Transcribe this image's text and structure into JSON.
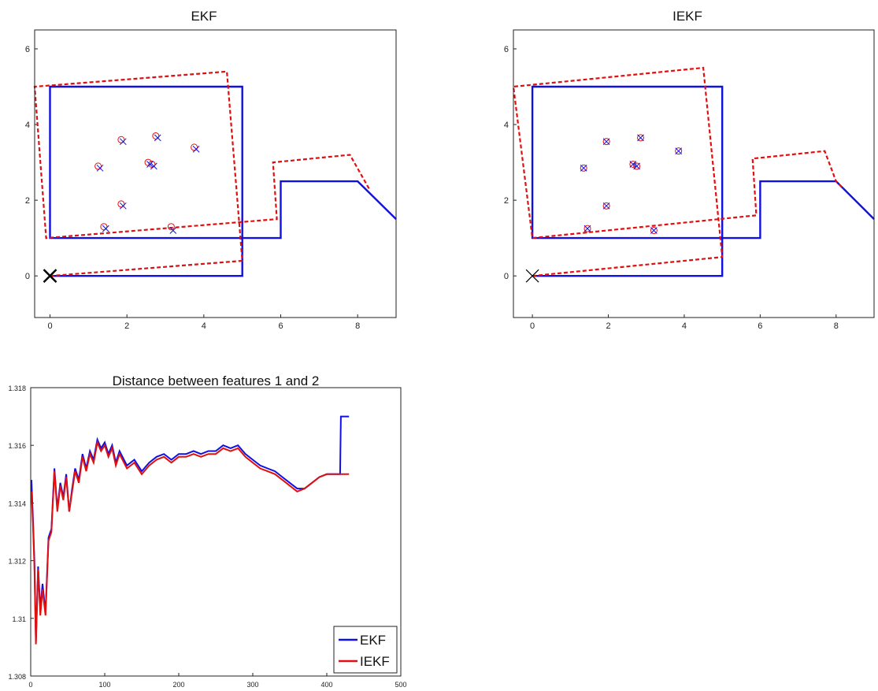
{
  "chart_data": [
    {
      "type": "line",
      "title": "EKF",
      "xlim": [
        -0.4,
        9
      ],
      "ylim": [
        -1.1,
        6.5
      ],
      "xticks": [
        "0",
        "2",
        "4",
        "6",
        "8"
      ],
      "yticks": [
        "0",
        "2",
        "4",
        "6"
      ],
      "grid": false,
      "series": [
        {
          "role": "true-trajectory",
          "color": "#1010e0",
          "style": "solid",
          "points": [
            [
              0,
              0
            ],
            [
              5,
              0
            ],
            [
              5,
              5
            ],
            [
              0,
              5
            ],
            [
              0,
              1
            ],
            [
              6,
              1
            ],
            [
              6,
              2.5
            ],
            [
              8,
              2.5
            ],
            [
              9,
              1.5
            ]
          ]
        },
        {
          "role": "estimated-trajectory",
          "color": "#e01010",
          "style": "dashed",
          "points": [
            [
              0,
              0
            ],
            [
              5,
              0.4
            ],
            [
              4.6,
              5.4
            ],
            [
              -0.4,
              5.0
            ],
            [
              -0.1,
              1.0
            ],
            [
              5.9,
              1.5
            ],
            [
              5.8,
              3.0
            ],
            [
              7.8,
              3.2
            ],
            [
              8.3,
              2.3
            ]
          ]
        }
      ],
      "features_true": [
        [
          1.3,
          2.85
        ],
        [
          1.9,
          3.55
        ],
        [
          2.8,
          3.65
        ],
        [
          3.8,
          3.35
        ],
        [
          2.6,
          2.95
        ],
        [
          2.7,
          2.9
        ],
        [
          1.9,
          1.85
        ],
        [
          1.45,
          1.25
        ],
        [
          3.2,
          1.2
        ]
      ],
      "features_estimated": [
        [
          1.25,
          2.9
        ],
        [
          1.85,
          3.6
        ],
        [
          2.75,
          3.7
        ],
        [
          3.75,
          3.4
        ],
        [
          2.55,
          3.0
        ],
        [
          2.65,
          2.95
        ],
        [
          1.85,
          1.9
        ],
        [
          1.4,
          1.3
        ],
        [
          3.15,
          1.3
        ]
      ],
      "start_marker": [
        0,
        0
      ]
    },
    {
      "type": "line",
      "title": "IEKF",
      "xlim": [
        -0.5,
        9
      ],
      "ylim": [
        -1.1,
        6.5
      ],
      "xticks": [
        "0",
        "2",
        "4",
        "6",
        "8"
      ],
      "yticks": [
        "0",
        "2",
        "4",
        "6"
      ],
      "grid": false,
      "series": [
        {
          "role": "true-trajectory",
          "color": "#1010e0",
          "style": "solid",
          "points": [
            [
              0,
              0
            ],
            [
              5,
              0
            ],
            [
              5,
              5
            ],
            [
              0,
              5
            ],
            [
              0,
              1
            ],
            [
              6,
              1
            ],
            [
              6,
              2.5
            ],
            [
              8,
              2.5
            ],
            [
              9,
              1.5
            ]
          ]
        },
        {
          "role": "estimated-trajectory",
          "color": "#e01010",
          "style": "dashed",
          "points": [
            [
              0,
              0
            ],
            [
              5,
              0.5
            ],
            [
              4.5,
              5.5
            ],
            [
              -0.5,
              5.0
            ],
            [
              0,
              1.0
            ],
            [
              5.9,
              1.6
            ],
            [
              5.8,
              3.1
            ],
            [
              7.7,
              3.3
            ],
            [
              8,
              2.5
            ],
            [
              8.2,
              2.3
            ]
          ]
        }
      ],
      "features_true": [
        [
          1.35,
          2.85
        ],
        [
          1.95,
          3.55
        ],
        [
          2.85,
          3.65
        ],
        [
          3.85,
          3.3
        ],
        [
          2.65,
          2.95
        ],
        [
          2.75,
          2.9
        ],
        [
          1.95,
          1.85
        ],
        [
          1.45,
          1.25
        ],
        [
          3.2,
          1.2
        ]
      ],
      "features_estimated": [
        [
          1.35,
          2.85
        ],
        [
          1.95,
          3.55
        ],
        [
          2.85,
          3.65
        ],
        [
          3.85,
          3.3
        ],
        [
          2.65,
          2.95
        ],
        [
          2.75,
          2.9
        ],
        [
          1.95,
          1.85
        ],
        [
          1.45,
          1.25
        ],
        [
          3.2,
          1.2
        ]
      ],
      "start_marker": [
        0,
        0
      ]
    },
    {
      "type": "line",
      "title": "Distance between features 1 and 2",
      "xlim": [
        0,
        500
      ],
      "ylim": [
        1.308,
        1.318
      ],
      "xticks": [
        "0",
        "100",
        "200",
        "300",
        "400",
        "500"
      ],
      "yticks": [
        "1.308",
        "1.31",
        "1.312",
        "1.314",
        "1.316",
        "1.318"
      ],
      "grid": false,
      "legend_position": "bottom-right",
      "series": [
        {
          "name": "EKF",
          "color": "#1010e0",
          "x": [
            1,
            3,
            5,
            7,
            10,
            13,
            16,
            20,
            24,
            28,
            32,
            36,
            40,
            44,
            48,
            52,
            56,
            60,
            65,
            70,
            75,
            80,
            85,
            90,
            95,
            100,
            105,
            110,
            115,
            120,
            130,
            140,
            150,
            160,
            170,
            180,
            190,
            200,
            210,
            220,
            230,
            240,
            250,
            260,
            270,
            280,
            290,
            300,
            310,
            320,
            330,
            340,
            350,
            360,
            370,
            380,
            390,
            400,
            410,
            418,
            419,
            420,
            430
          ],
          "values": [
            1.3148,
            1.3135,
            1.312,
            1.3092,
            1.3118,
            1.3103,
            1.3112,
            1.3102,
            1.3128,
            1.3131,
            1.3152,
            1.3138,
            1.3147,
            1.3142,
            1.315,
            1.3137,
            1.3145,
            1.3152,
            1.3148,
            1.3157,
            1.3152,
            1.3158,
            1.3155,
            1.3162,
            1.3159,
            1.3161,
            1.3157,
            1.316,
            1.3154,
            1.3158,
            1.3153,
            1.3155,
            1.3151,
            1.3154,
            1.3156,
            1.3157,
            1.3155,
            1.3157,
            1.3157,
            1.3158,
            1.3157,
            1.3158,
            1.3158,
            1.316,
            1.3159,
            1.316,
            1.3157,
            1.3155,
            1.3153,
            1.3152,
            1.3151,
            1.3149,
            1.3147,
            1.3145,
            1.3145,
            1.3147,
            1.3149,
            1.315,
            1.315,
            1.315,
            1.317,
            1.317,
            1.317
          ]
        },
        {
          "name": "IEKF",
          "color": "#e01010",
          "x": [
            1,
            3,
            5,
            7,
            10,
            13,
            16,
            20,
            24,
            28,
            32,
            36,
            40,
            44,
            48,
            52,
            56,
            60,
            65,
            70,
            75,
            80,
            85,
            90,
            95,
            100,
            105,
            110,
            115,
            120,
            130,
            140,
            150,
            160,
            170,
            180,
            190,
            200,
            210,
            220,
            230,
            240,
            250,
            260,
            270,
            280,
            290,
            300,
            310,
            320,
            330,
            340,
            350,
            360,
            370,
            380,
            390,
            400,
            410,
            418,
            430
          ],
          "values": [
            1.3144,
            1.3133,
            1.3118,
            1.3091,
            1.3117,
            1.3101,
            1.311,
            1.3101,
            1.3127,
            1.313,
            1.3151,
            1.3137,
            1.3146,
            1.3141,
            1.3149,
            1.3137,
            1.3144,
            1.3151,
            1.3147,
            1.3156,
            1.3151,
            1.3157,
            1.3154,
            1.3161,
            1.3158,
            1.316,
            1.3156,
            1.3159,
            1.3153,
            1.3157,
            1.3152,
            1.3154,
            1.315,
            1.3153,
            1.3155,
            1.3156,
            1.3154,
            1.3156,
            1.3156,
            1.3157,
            1.3156,
            1.3157,
            1.3157,
            1.3159,
            1.3158,
            1.3159,
            1.3156,
            1.3154,
            1.3152,
            1.3151,
            1.315,
            1.3148,
            1.3146,
            1.3144,
            1.3145,
            1.3147,
            1.3149,
            1.315,
            1.315,
            1.315,
            1.315
          ]
        }
      ]
    }
  ],
  "legend": {
    "ekf_label": "EKF",
    "iekf_label": "IEKF"
  }
}
